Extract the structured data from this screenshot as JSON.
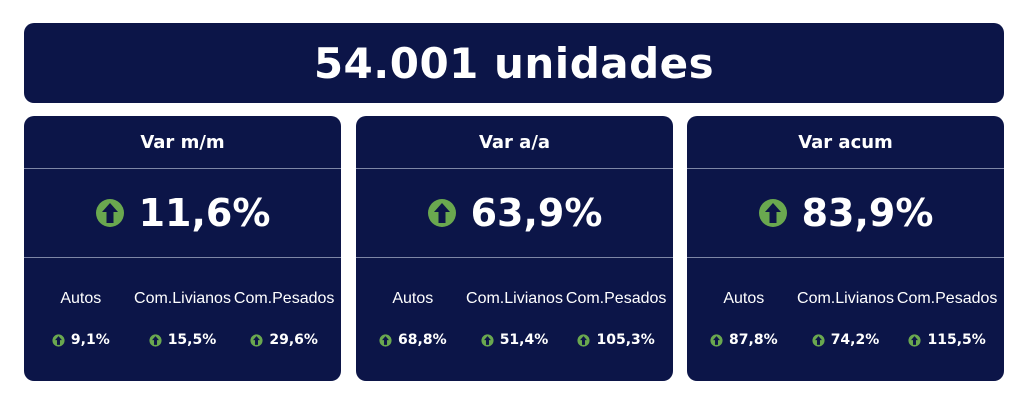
{
  "banner": {
    "title": "54.001 unidades"
  },
  "colors": {
    "panel": "#0c1548",
    "up_arrow": "#6aa84f",
    "text": "#ffffff"
  },
  "cards": [
    {
      "header": "Var m/m",
      "icon": "up-arrow-icon",
      "value": "11,6%",
      "segments": [
        {
          "label": "Autos",
          "value": "9,1%"
        },
        {
          "label_line1": "Com.",
          "label_line2": "Livianos",
          "value": "15,5%"
        },
        {
          "label_line1": "Com.",
          "label_line2": "Pesados",
          "value": "29,6%"
        }
      ]
    },
    {
      "header": "Var a/a",
      "icon": "up-arrow-icon",
      "value": "63,9%",
      "segments": [
        {
          "label": "Autos",
          "value": "68,8%"
        },
        {
          "label_line1": "Com.",
          "label_line2": "Livianos",
          "value": "51,4%"
        },
        {
          "label_line1": "Com.",
          "label_line2": "Pesados",
          "value": "105,3%"
        }
      ]
    },
    {
      "header": "Var acum",
      "icon": "up-arrow-icon",
      "value": "83,9%",
      "segments": [
        {
          "label": "Autos",
          "value": "87,8%"
        },
        {
          "label_line1": "Com.",
          "label_line2": "Livianos",
          "value": "74,2%"
        },
        {
          "label_line1": "Com.",
          "label_line2": "Pesados",
          "value": "115,5%"
        }
      ]
    }
  ]
}
